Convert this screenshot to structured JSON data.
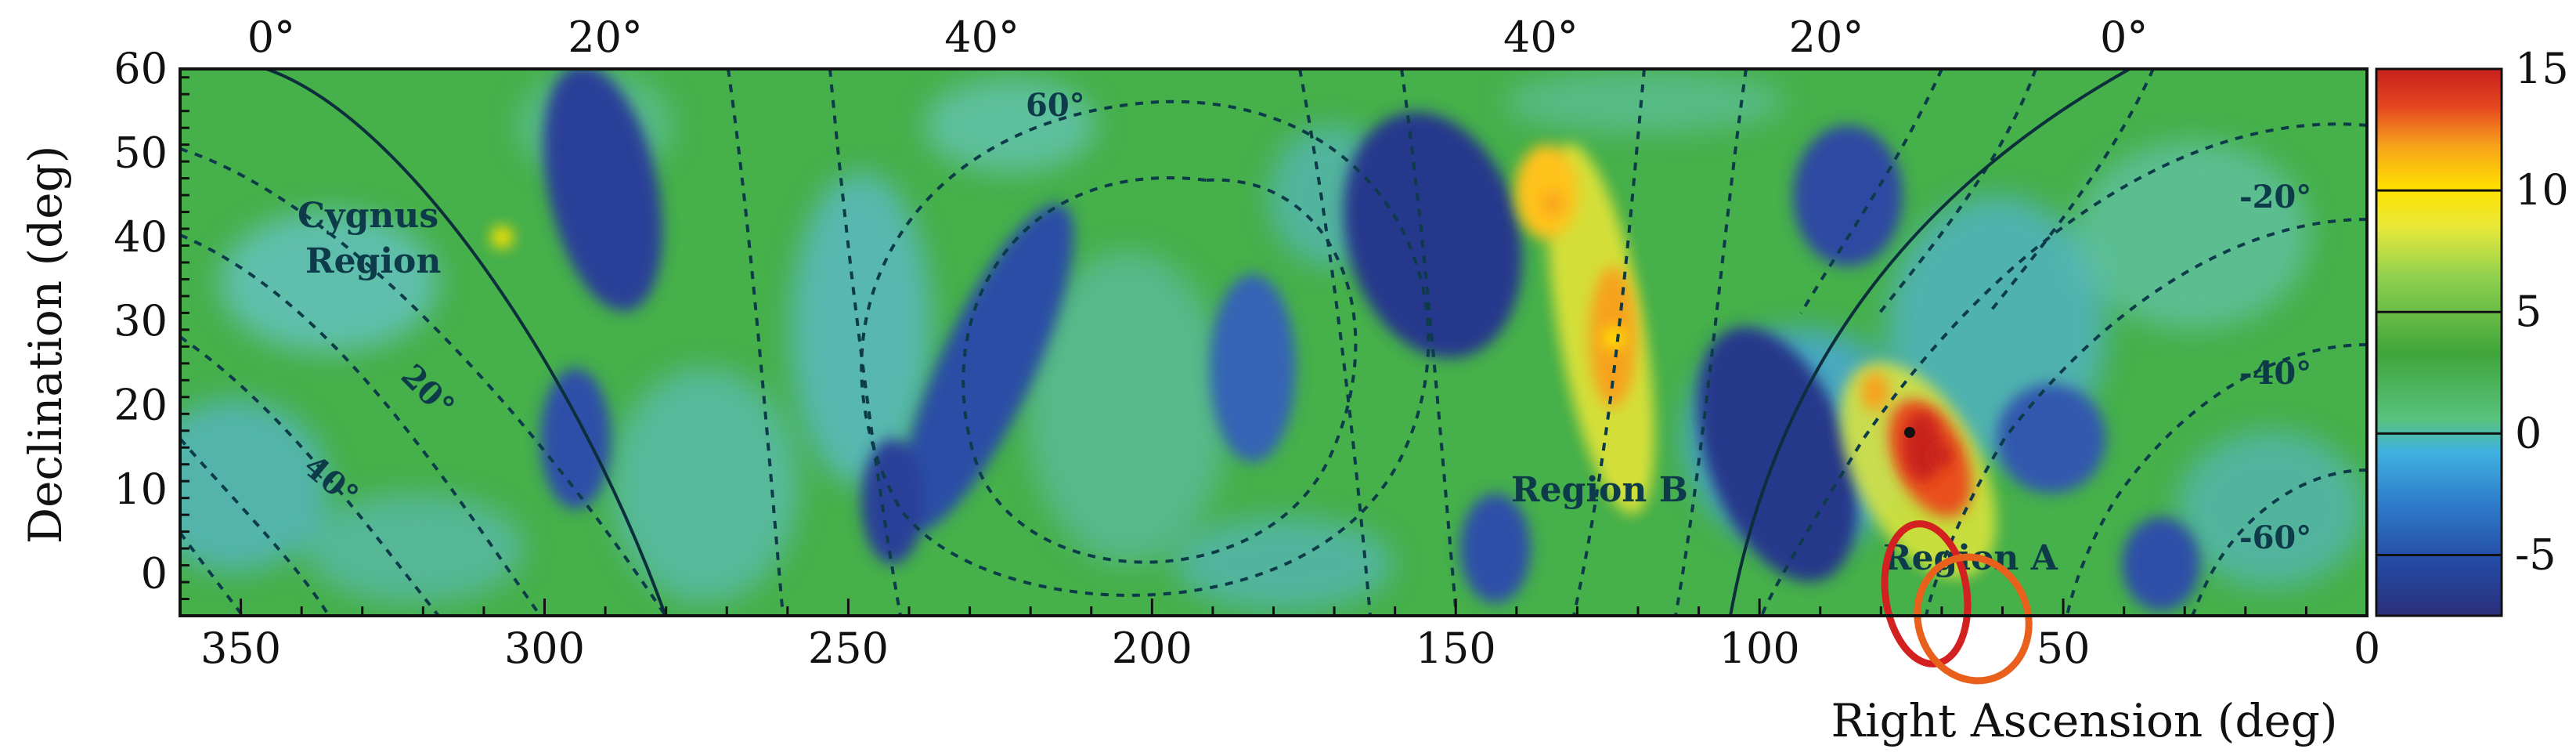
{
  "chart_data": {
    "type": "heatmap",
    "xlabel": "Right Ascension (deg)",
    "ylabel": "Declination (deg)",
    "xlim": [
      360,
      0
    ],
    "ylim": [
      -5,
      60
    ],
    "x_ticks": [
      350,
      300,
      250,
      200,
      150,
      100,
      50,
      0
    ],
    "y_ticks": [
      0,
      10,
      20,
      30,
      40,
      50,
      60
    ],
    "galactic_longitude_labels": [
      {
        "label": "0°",
        "ra": 345
      },
      {
        "label": "20°",
        "ra": 290
      },
      {
        "label": "40°",
        "ra": 228
      },
      {
        "label": "40°",
        "ra": 136
      },
      {
        "label": "20°",
        "ra": 89
      },
      {
        "label": "0°",
        "ra": 40
      }
    ],
    "colorbar": {
      "min": -7.5,
      "max": 15,
      "ticks": [
        15,
        10,
        5,
        0,
        -5
      ],
      "colors": [
        "#2b2f7a",
        "#2448a0",
        "#2e79c8",
        "#3fb2e0",
        "#59c27c",
        "#3fa53a",
        "#8fd14f",
        "#e8e83a",
        "#ffe200",
        "#f7a21b",
        "#e5481f",
        "#c8201e"
      ]
    },
    "contour_labels": [
      {
        "label": "60°",
        "ra": 217,
        "dec": 54
      },
      {
        "label": "20°",
        "ra": 322,
        "dec": 23
      },
      {
        "label": "40°",
        "ra": 339,
        "dec": 12
      },
      {
        "label": "-20°",
        "ra": 10,
        "dec": 42
      },
      {
        "label": "-40°",
        "ra": 10,
        "dec": 24
      },
      {
        "label": "-60°",
        "ra": 16,
        "dec": 4
      }
    ],
    "region_labels": [
      {
        "label": "Cygnus\nRegion",
        "ra": 337,
        "dec": 40
      },
      {
        "label": "Region B",
        "ra": 126,
        "dec": 10
      },
      {
        "label": "Region A",
        "ra": 66,
        "dec": 2
      }
    ],
    "hotspots": [
      {
        "ra": 307,
        "dec": 40,
        "value": 10
      },
      {
        "ra": 134,
        "dec": 44,
        "value": 11
      },
      {
        "ra": 124,
        "dec": 28,
        "value": 10
      },
      {
        "ra": 70,
        "dec": 14,
        "value": 15
      }
    ],
    "ellipses": [
      {
        "ra": 72,
        "dec": 0,
        "color": "#d32020"
      },
      {
        "ra": 62,
        "dec": -5,
        "color": "#e8601c"
      }
    ]
  }
}
